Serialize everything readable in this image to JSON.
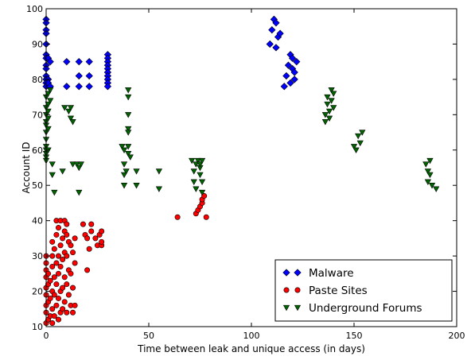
{
  "chart_data": {
    "type": "scatter",
    "title": "",
    "xlabel": "Time between leak and unique access (in days)",
    "ylabel": "Account ID",
    "xlim": [
      0,
      200
    ],
    "ylim": [
      10,
      100
    ],
    "xticks": [
      0,
      50,
      100,
      150,
      200
    ],
    "yticks": [
      10,
      20,
      30,
      40,
      50,
      60,
      70,
      80,
      90,
      100
    ],
    "grid": false,
    "legend_position": "lower-right",
    "series": [
      {
        "name": "Malware",
        "marker": "diamond",
        "color": "#0000ff",
        "points": [
          [
            0,
            97
          ],
          [
            0,
            96
          ],
          [
            0,
            94
          ],
          [
            0,
            93
          ],
          [
            0,
            90
          ],
          [
            0,
            87
          ],
          [
            0,
            86
          ],
          [
            0,
            84
          ],
          [
            0,
            83
          ],
          [
            0,
            81
          ],
          [
            0,
            80
          ],
          [
            0,
            79
          ],
          [
            0,
            78
          ],
          [
            1,
            86
          ],
          [
            1,
            80
          ],
          [
            1,
            79
          ],
          [
            2,
            85
          ],
          [
            2,
            78
          ],
          [
            10,
            85
          ],
          [
            10,
            78
          ],
          [
            16,
            85
          ],
          [
            16,
            81
          ],
          [
            16,
            78
          ],
          [
            21,
            85
          ],
          [
            21,
            81
          ],
          [
            21,
            78
          ],
          [
            30,
            87
          ],
          [
            30,
            86
          ],
          [
            30,
            85
          ],
          [
            30,
            84
          ],
          [
            30,
            83
          ],
          [
            30,
            82
          ],
          [
            30,
            81
          ],
          [
            30,
            80
          ],
          [
            30,
            79
          ],
          [
            30,
            78
          ],
          [
            109,
            90
          ],
          [
            110,
            94
          ],
          [
            111,
            97
          ],
          [
            112,
            96
          ],
          [
            113,
            92
          ],
          [
            112,
            89
          ],
          [
            114,
            93
          ],
          [
            116,
            78
          ],
          [
            117,
            81
          ],
          [
            118,
            84
          ],
          [
            119,
            87
          ],
          [
            120,
            86
          ],
          [
            120,
            83
          ],
          [
            121,
            82
          ],
          [
            121,
            80
          ],
          [
            119,
            79
          ],
          [
            122,
            85
          ]
        ]
      },
      {
        "name": "Paste Sites",
        "marker": "circle",
        "color": "#ff0000",
        "points": [
          [
            0,
            11
          ],
          [
            0,
            14
          ],
          [
            0,
            16
          ],
          [
            0,
            19
          ],
          [
            0,
            21
          ],
          [
            0,
            24
          ],
          [
            0,
            26
          ],
          [
            0,
            28
          ],
          [
            0,
            30
          ],
          [
            1,
            12
          ],
          [
            1,
            17
          ],
          [
            1,
            22
          ],
          [
            1,
            25
          ],
          [
            2,
            13
          ],
          [
            2,
            18
          ],
          [
            2,
            23
          ],
          [
            3,
            11
          ],
          [
            3,
            15
          ],
          [
            3,
            20
          ],
          [
            3,
            27
          ],
          [
            3,
            30
          ],
          [
            3,
            34
          ],
          [
            4,
            13
          ],
          [
            4,
            19
          ],
          [
            4,
            24
          ],
          [
            4,
            32
          ],
          [
            5,
            16
          ],
          [
            5,
            22
          ],
          [
            5,
            28
          ],
          [
            5,
            36
          ],
          [
            5,
            40
          ],
          [
            6,
            12
          ],
          [
            6,
            18
          ],
          [
            6,
            25
          ],
          [
            6,
            30
          ],
          [
            6,
            38
          ],
          [
            7,
            14
          ],
          [
            7,
            20
          ],
          [
            7,
            27
          ],
          [
            7,
            33
          ],
          [
            7,
            40
          ],
          [
            8,
            15
          ],
          [
            8,
            21
          ],
          [
            8,
            29
          ],
          [
            8,
            35
          ],
          [
            9,
            17
          ],
          [
            9,
            24
          ],
          [
            9,
            31
          ],
          [
            9,
            37
          ],
          [
            9,
            40
          ],
          [
            10,
            14
          ],
          [
            10,
            22
          ],
          [
            10,
            30
          ],
          [
            10,
            36
          ],
          [
            10,
            39
          ],
          [
            11,
            19
          ],
          [
            11,
            26
          ],
          [
            11,
            34
          ],
          [
            12,
            16
          ],
          [
            12,
            25
          ],
          [
            12,
            33
          ],
          [
            13,
            14
          ],
          [
            13,
            21
          ],
          [
            13,
            31
          ],
          [
            14,
            16
          ],
          [
            14,
            28
          ],
          [
            14,
            35
          ],
          [
            18,
            39
          ],
          [
            19,
            36
          ],
          [
            20,
            35
          ],
          [
            20,
            26
          ],
          [
            21,
            32
          ],
          [
            22,
            37
          ],
          [
            22,
            39
          ],
          [
            24,
            35
          ],
          [
            25,
            33
          ],
          [
            26,
            36
          ],
          [
            27,
            33
          ],
          [
            27,
            37
          ],
          [
            27,
            34
          ],
          [
            64,
            41
          ],
          [
            73,
            42
          ],
          [
            74,
            43
          ],
          [
            75,
            44
          ],
          [
            76,
            45
          ],
          [
            76,
            46
          ],
          [
            77,
            47
          ],
          [
            78,
            41
          ]
        ]
      },
      {
        "name": "Underground Forums",
        "marker": "triangle-down",
        "color": "#006400",
        "points": [
          [
            0,
            57
          ],
          [
            0,
            58
          ],
          [
            0,
            59
          ],
          [
            0,
            60
          ],
          [
            0,
            61
          ],
          [
            0,
            63
          ],
          [
            0,
            65
          ],
          [
            0,
            67
          ],
          [
            0,
            68
          ],
          [
            0,
            70
          ],
          [
            0,
            72
          ],
          [
            0,
            75
          ],
          [
            1,
            60
          ],
          [
            1,
            66
          ],
          [
            1,
            69
          ],
          [
            1,
            71
          ],
          [
            1,
            73
          ],
          [
            1,
            76
          ],
          [
            2,
            74
          ],
          [
            2,
            77
          ],
          [
            3,
            53
          ],
          [
            3,
            56
          ],
          [
            4,
            48
          ],
          [
            8,
            54
          ],
          [
            9,
            72
          ],
          [
            11,
            71
          ],
          [
            12,
            72
          ],
          [
            12,
            69
          ],
          [
            13,
            68
          ],
          [
            13,
            56
          ],
          [
            15,
            56
          ],
          [
            16,
            48
          ],
          [
            16,
            55
          ],
          [
            17,
            56
          ],
          [
            37,
            61
          ],
          [
            38,
            60
          ],
          [
            38,
            56
          ],
          [
            38,
            53
          ],
          [
            38,
            50
          ],
          [
            39,
            54
          ],
          [
            40,
            77
          ],
          [
            40,
            75
          ],
          [
            40,
            70
          ],
          [
            40,
            66
          ],
          [
            40,
            65
          ],
          [
            40,
            61
          ],
          [
            40,
            59
          ],
          [
            41,
            58
          ],
          [
            44,
            54
          ],
          [
            44,
            50
          ],
          [
            55,
            54
          ],
          [
            55,
            49
          ],
          [
            71,
            57
          ],
          [
            72,
            54
          ],
          [
            72,
            51
          ],
          [
            73,
            56
          ],
          [
            73,
            49
          ],
          [
            74,
            57
          ],
          [
            75,
            53
          ],
          [
            75,
            55
          ],
          [
            75,
            56
          ],
          [
            76,
            51
          ],
          [
            76,
            57
          ],
          [
            76,
            48
          ],
          [
            136,
            68
          ],
          [
            136,
            70
          ],
          [
            137,
            73
          ],
          [
            137,
            75
          ],
          [
            138,
            69
          ],
          [
            138,
            71
          ],
          [
            139,
            74
          ],
          [
            139,
            77
          ],
          [
            140,
            72
          ],
          [
            140,
            76
          ],
          [
            150,
            61
          ],
          [
            151,
            60
          ],
          [
            152,
            64
          ],
          [
            153,
            62
          ],
          [
            154,
            65
          ],
          [
            185,
            56
          ],
          [
            186,
            54
          ],
          [
            186,
            51
          ],
          [
            187,
            57
          ],
          [
            187,
            53
          ],
          [
            188,
            50
          ],
          [
            190,
            49
          ]
        ]
      }
    ]
  }
}
